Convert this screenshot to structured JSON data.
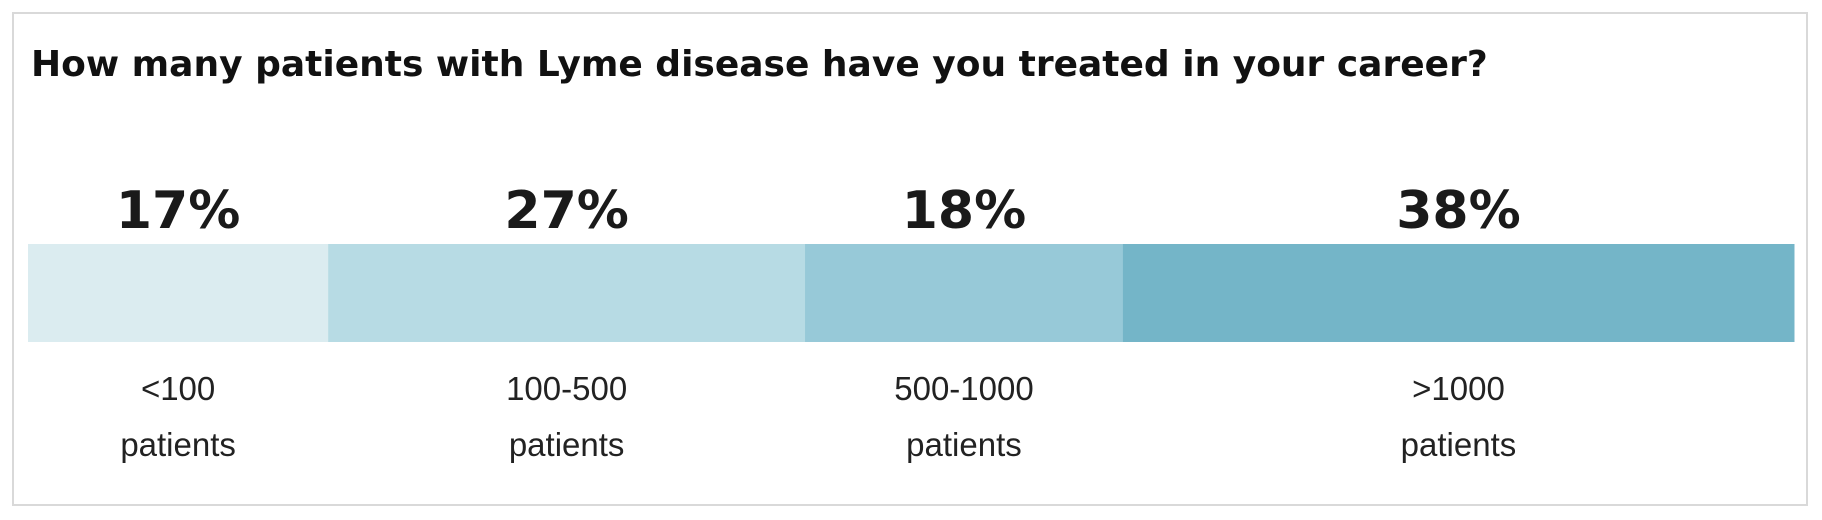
{
  "title": "How many patients with Lyme disease have you treated in your career?",
  "colors": {
    "segments": [
      "#dbecf0",
      "#b7dbe4",
      "#97c9d8",
      "#74b5c8"
    ],
    "border": "#d9d9d9",
    "text": "#1a1a1a"
  },
  "chart_data": {
    "type": "bar",
    "orientation": "horizontal-stacked-100",
    "title": "How many patients with Lyme disease have you treated in your career?",
    "categories": [
      {
        "line1": "<100",
        "line2": "patients"
      },
      {
        "line1": "100-500",
        "line2": "patients"
      },
      {
        "line1": "500-1000",
        "line2": "patients"
      },
      {
        "line1": ">1000",
        "line2": "patients"
      }
    ],
    "values": [
      17,
      27,
      18,
      38
    ],
    "value_labels": [
      "17%",
      "27%",
      "18%",
      "38%"
    ],
    "unit": "%",
    "grid": false,
    "legend": "none"
  }
}
